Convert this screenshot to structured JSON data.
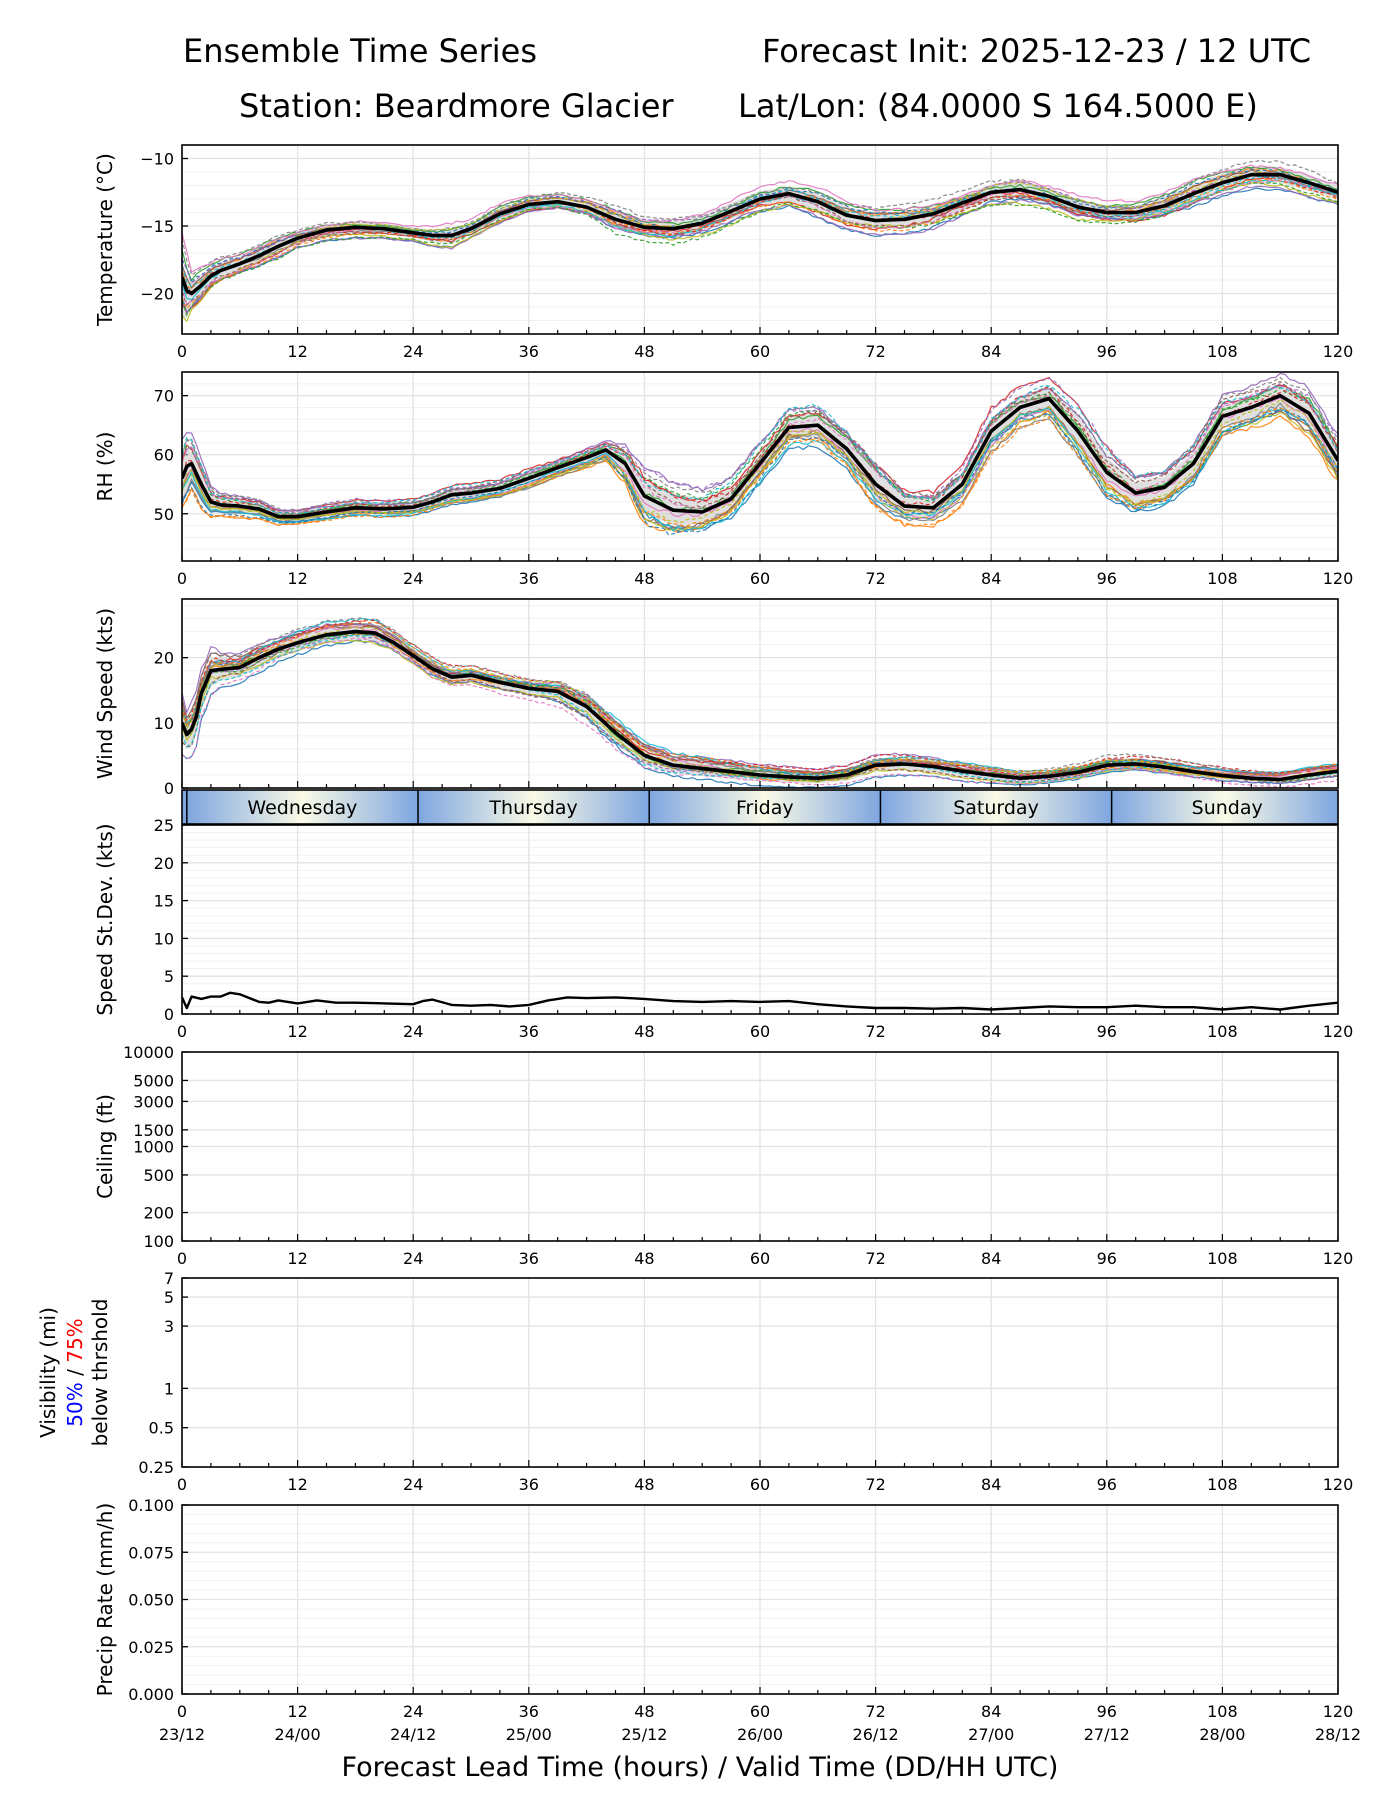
{
  "header": {
    "title_left": "Ensemble Time Series",
    "title_right": "Forecast Init: 2025-12-23 / 12 UTC",
    "station": "Station: Beardmore Glacier",
    "latlon": "Lat/Lon: (84.0000 S 164.5000 E)"
  },
  "xaxis": {
    "label": "Forecast Lead Time (hours) / Valid Time (DD/HH UTC)",
    "ticks": [
      0,
      12,
      24,
      36,
      48,
      60,
      72,
      84,
      96,
      108,
      120
    ],
    "valid_time_labels": [
      "23/12",
      "24/00",
      "24/12",
      "25/00",
      "25/12",
      "26/00",
      "26/12",
      "27/00",
      "27/12",
      "28/00",
      "28/12"
    ]
  },
  "colors": {
    "ensemble": [
      "#1f77b4",
      "#ff7f0e",
      "#2ca02c",
      "#d62728",
      "#9467bd",
      "#8c564b",
      "#e377c2",
      "#7f7f7f",
      "#bcbd22",
      "#17becf"
    ],
    "mean": "#000000",
    "spread": "#cccccc",
    "grid": "#e3e3e3",
    "day_gradient_edge": "#7ea6e0",
    "day_gradient_center": "#fafae6",
    "vis_50": "#0000ff",
    "vis_75": "#ff0000"
  },
  "chart_data": [
    {
      "id": "temperature",
      "type": "line",
      "ylabel": "Temperature (°C)",
      "ylim": [
        -23,
        -9
      ],
      "yticks": [
        -20,
        -15,
        -10
      ],
      "grid": true,
      "x": [
        0,
        0.5,
        1,
        2,
        3,
        4,
        6,
        8,
        10,
        12,
        15,
        18,
        21,
        24,
        26,
        28,
        30,
        33,
        36,
        39,
        42,
        45,
        48,
        51,
        54,
        57,
        60,
        63,
        66,
        69,
        72,
        75,
        78,
        81,
        84,
        87,
        90,
        93,
        96,
        99,
        102,
        105,
        108,
        111,
        114,
        117,
        120
      ],
      "series": [
        {
          "name": "Ensemble mean",
          "values": [
            -18.8,
            -19.8,
            -20,
            -19.4,
            -18.7,
            -18.3,
            -17.8,
            -17.2,
            -16.5,
            -15.9,
            -15.3,
            -15.1,
            -15.2,
            -15.5,
            -15.7,
            -15.7,
            -15.2,
            -14.1,
            -13.4,
            -13.2,
            -13.6,
            -14.5,
            -15.1,
            -15.2,
            -14.8,
            -13.9,
            -13,
            -12.6,
            -13.2,
            -14.2,
            -14.6,
            -14.5,
            -14.1,
            -13.3,
            -12.5,
            -12.3,
            -12.8,
            -13.6,
            -14,
            -14,
            -13.5,
            -12.6,
            -11.8,
            -11.2,
            -11.2,
            -11.8,
            -12.5
          ]
        }
      ],
      "spread": {
        "lower": [
          -21.8,
          -21.8,
          -21,
          -20.3,
          -19.4,
          -18.9,
          -18.3,
          -17.7,
          -17,
          -16.3,
          -15.8,
          -15.6,
          -15.6,
          -15.8,
          -16.2,
          -16.3,
          -15.6,
          -14.6,
          -13.8,
          -13.6,
          -14.1,
          -15.2,
          -15.7,
          -15.9,
          -15.4,
          -14.5,
          -13.6,
          -13.2,
          -13.9,
          -14.8,
          -15.2,
          -15.2,
          -14.7,
          -13.9,
          -13.1,
          -12.9,
          -13.3,
          -14.2,
          -14.5,
          -14.5,
          -14.1,
          -13.3,
          -12.4,
          -11.9,
          -11.8,
          -12.4,
          -13
        ]
      },
      "spread_upper": [
        -18.2,
        -18.6,
        -19.2,
        -18.7,
        -18.1,
        -17.7,
        -17.3,
        -16.6,
        -15.9,
        -15.4,
        -14.9,
        -14.7,
        -14.8,
        -15.1,
        -15.3,
        -15.2,
        -14.8,
        -13.7,
        -13,
        -12.8,
        -13.2,
        -13.8,
        -14.5,
        -14.6,
        -14.2,
        -13.3,
        -12.4,
        -12.1,
        -12.6,
        -13.6,
        -14,
        -13.9,
        -13.4,
        -12.7,
        -11.9,
        -11.6,
        -12.2,
        -13,
        -13.5,
        -13.5,
        -12.9,
        -11.9,
        -11.1,
        -10.6,
        -10.6,
        -11.2,
        -12
      ]
    },
    {
      "id": "rh",
      "type": "line",
      "ylabel": "RH (%)",
      "ylim": [
        42,
        74
      ],
      "yticks": [
        50,
        60,
        70
      ],
      "grid": true,
      "x": [
        0,
        0.5,
        1,
        2,
        3,
        4,
        6,
        8,
        10,
        12,
        15,
        18,
        21,
        24,
        26,
        28,
        30,
        33,
        36,
        39,
        42,
        44,
        46,
        48,
        51,
        54,
        57,
        60,
        63,
        66,
        69,
        72,
        75,
        78,
        81,
        84,
        87,
        90,
        93,
        96,
        99,
        102,
        105,
        108,
        111,
        114,
        117,
        120
      ],
      "series": [
        {
          "name": "Ensemble mean",
          "values": [
            56,
            58,
            58.5,
            55,
            52,
            51.5,
            51.3,
            50.8,
            49.5,
            49.5,
            50.3,
            51,
            50.8,
            51.1,
            52,
            53.2,
            53.5,
            54.3,
            56,
            57.8,
            59.5,
            60.8,
            58.5,
            53,
            50.6,
            50.3,
            52.5,
            58.5,
            64.6,
            65,
            61,
            55,
            51.3,
            51,
            55,
            64,
            68,
            69.5,
            64,
            57,
            53.5,
            54.5,
            58.5,
            66.5,
            68,
            70,
            67,
            59
          ]
        }
      ],
      "spread_lower": [
        52,
        54,
        55,
        52,
        50.5,
        50.3,
        50.2,
        49.8,
        48.7,
        48.8,
        49.5,
        50.2,
        50,
        50.3,
        51.2,
        52.3,
        52.6,
        53.4,
        55,
        56.9,
        58.5,
        59.8,
        56.5,
        50,
        48,
        48.3,
        50.5,
        56.5,
        62.5,
        63,
        59,
        52.5,
        49.5,
        49.3,
        53,
        61.5,
        66,
        67.5,
        61.5,
        54.5,
        51.7,
        52.8,
        56.5,
        64.5,
        66,
        67.8,
        64.5,
        56.5
      ],
      "spread_upper": [
        59,
        61,
        60.5,
        57,
        53.5,
        52.7,
        52.4,
        51.8,
        50.3,
        50.2,
        51.1,
        51.8,
        51.6,
        51.9,
        52.8,
        54.1,
        54.4,
        55.2,
        57,
        58.7,
        60.5,
        61.8,
        60.5,
        56,
        53.5,
        52.5,
        54.5,
        60.5,
        66.5,
        67,
        63,
        57.5,
        53.2,
        52.7,
        57,
        66,
        70,
        71.5,
        66.5,
        59.5,
        55.3,
        56.2,
        60.5,
        68.5,
        70,
        72,
        69.5,
        61.5
      ]
    },
    {
      "id": "wind_speed",
      "type": "line",
      "ylabel": "Wind Speed (kts)",
      "ylim": [
        0,
        29
      ],
      "yticks": [
        0,
        10,
        20
      ],
      "grid": true,
      "x": [
        0,
        0.5,
        1,
        1.5,
        2,
        3,
        4,
        6,
        8,
        10,
        12,
        15,
        18,
        20,
        22,
        24,
        26,
        28,
        30,
        33,
        36,
        39,
        42,
        45,
        48,
        51,
        54,
        57,
        60,
        63,
        66,
        69,
        72,
        75,
        78,
        81,
        84,
        87,
        90,
        93,
        96,
        99,
        102,
        105,
        108,
        111,
        114,
        117,
        120
      ],
      "series": [
        {
          "name": "Ensemble mean",
          "values": [
            10,
            8.2,
            9,
            11,
            14.5,
            18,
            18.2,
            18.5,
            20,
            21.3,
            22.3,
            23.5,
            24,
            23.8,
            22.3,
            20.3,
            18.3,
            17,
            17.3,
            16.2,
            15.3,
            14.8,
            12.5,
            8.5,
            5,
            3.5,
            3,
            2.5,
            2,
            1.7,
            1.5,
            2,
            3.5,
            3.7,
            3.3,
            2.6,
            2,
            1.5,
            1.8,
            2.4,
            3.5,
            3.7,
            3.2,
            2.5,
            1.9,
            1.5,
            1.3,
            2,
            2.6
          ]
        }
      ],
      "spread_lower": [
        7,
        6,
        6.5,
        8.5,
        12,
        15.5,
        16.5,
        17,
        18.5,
        20,
        21,
        22.2,
        22.8,
        22.5,
        21.2,
        19.3,
        17.2,
        16,
        16.3,
        15.2,
        14.3,
        13.5,
        10.8,
        6.8,
        3.6,
        2.3,
        1.8,
        1.4,
        1,
        0.8,
        0.7,
        1.1,
        2.5,
        2.7,
        2.4,
        1.7,
        1.2,
        0.8,
        1.1,
        1.6,
        2.6,
        2.8,
        2.3,
        1.7,
        1.1,
        0.8,
        0.6,
        1.2,
        1.8
      ],
      "spread_upper": [
        13,
        10.5,
        11.5,
        13.5,
        16.5,
        20,
        20,
        20,
        21.5,
        22.6,
        23.6,
        24.8,
        25.2,
        25.1,
        23.5,
        21.3,
        19.4,
        18,
        18.3,
        17.2,
        16.3,
        16.2,
        14.2,
        10.2,
        6.5,
        4.8,
        4.2,
        3.6,
        3,
        2.6,
        2.4,
        2.9,
        4.5,
        4.7,
        4.2,
        3.5,
        2.8,
        2.2,
        2.5,
        3.2,
        4.4,
        4.6,
        4.1,
        3.3,
        2.7,
        2.2,
        2,
        2.8,
        3.4
      ]
    },
    {
      "id": "weekdays",
      "type": "table",
      "days": [
        {
          "label": "Wednesday",
          "start_hour": 0.5,
          "end_hour": 24.5
        },
        {
          "label": "Thursday",
          "start_hour": 24.5,
          "end_hour": 48.5
        },
        {
          "label": "Friday",
          "start_hour": 48.5,
          "end_hour": 72.5
        },
        {
          "label": "Saturday",
          "start_hour": 72.5,
          "end_hour": 96.5
        },
        {
          "label": "Sunday",
          "start_hour": 96.5,
          "end_hour": 120.5
        }
      ]
    },
    {
      "id": "speed_stdev",
      "type": "line",
      "ylabel": "Speed St.Dev. (kts)",
      "ylim": [
        0,
        25
      ],
      "yticks": [
        0,
        5,
        10,
        15,
        20,
        25
      ],
      "grid": true,
      "x": [
        0,
        0.5,
        1,
        2,
        3,
        4,
        5,
        6,
        8,
        9,
        10,
        12,
        14,
        16,
        18,
        21,
        24,
        25,
        26,
        28,
        30,
        32,
        34,
        36,
        38,
        40,
        42,
        45,
        48,
        51,
        54,
        57,
        60,
        63,
        66,
        69,
        72,
        75,
        78,
        81,
        84,
        87,
        90,
        93,
        96,
        99,
        102,
        105,
        108,
        111,
        114,
        117,
        120
      ],
      "series": [
        {
          "name": "Speed StDev",
          "values": [
            2.2,
            0.8,
            2.3,
            2,
            2.3,
            2.3,
            2.8,
            2.6,
            1.6,
            1.5,
            1.8,
            1.4,
            1.8,
            1.5,
            1.5,
            1.4,
            1.3,
            1.7,
            1.9,
            1.2,
            1.1,
            1.2,
            1,
            1.2,
            1.8,
            2.2,
            2.1,
            2.2,
            2,
            1.7,
            1.6,
            1.7,
            1.6,
            1.7,
            1.3,
            1,
            0.8,
            0.8,
            0.7,
            0.8,
            0.6,
            0.8,
            1,
            0.9,
            0.9,
            1.1,
            0.9,
            0.9,
            0.6,
            0.9,
            0.6,
            1.1,
            1.5
          ]
        }
      ]
    },
    {
      "id": "ceiling",
      "type": "line",
      "ylabel": "Ceiling (ft)",
      "yscale": "log",
      "ylim": [
        100,
        10000
      ],
      "yticks": [
        100,
        200,
        500,
        1000,
        1500,
        3000,
        5000,
        10000
      ],
      "grid": true,
      "series": []
    },
    {
      "id": "visibility",
      "type": "line",
      "ylabel": "Visibility (mi)",
      "ylabel_sub": {
        "p50": "50%",
        "sep": " / ",
        "p75": "75%",
        "rest": "below thrshold"
      },
      "yscale": "log",
      "ylim": [
        0.25,
        7
      ],
      "yticks": [
        0.25,
        0.5,
        1,
        3,
        5,
        7
      ],
      "grid": true,
      "series": []
    },
    {
      "id": "precip",
      "type": "line",
      "ylabel": "Precip Rate (mm/h)",
      "ylim": [
        0,
        0.1
      ],
      "yticks": [
        "0.000",
        "0.025",
        "0.050",
        "0.075",
        "0.100"
      ],
      "grid": true,
      "series": []
    }
  ]
}
